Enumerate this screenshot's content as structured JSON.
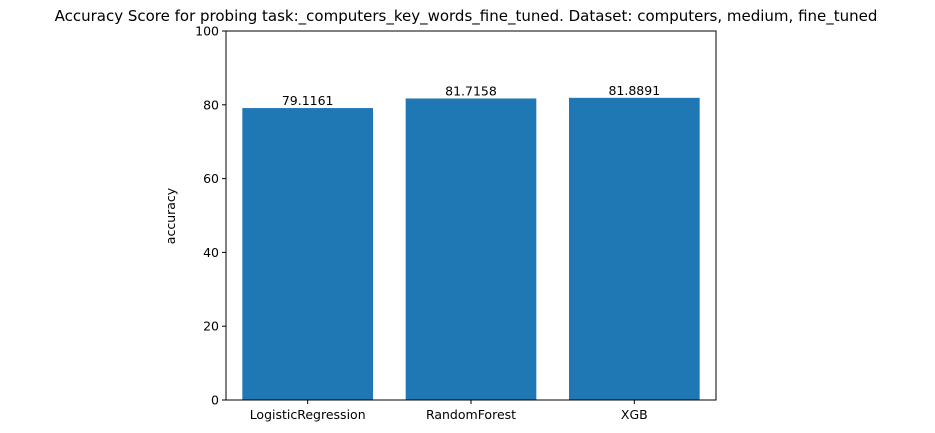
{
  "chart_data": {
    "type": "bar",
    "title": "Accuracy Score for probing task:_computers_key_words_fine_tuned. Dataset: computers, medium, fine_tuned",
    "xlabel": "",
    "ylabel": "accuracy",
    "categories": [
      "LogisticRegression",
      "RandomForest",
      "XGB"
    ],
    "values": [
      79.1161,
      81.7158,
      81.8891
    ],
    "data_labels": [
      "79.1161",
      "81.7158",
      "81.8891"
    ],
    "ylim": [
      0,
      100
    ],
    "yticks": [
      0,
      20,
      40,
      60,
      80,
      100
    ],
    "ytick_labels": [
      "0",
      "20",
      "40",
      "60",
      "80",
      "100"
    ],
    "bar_color": "#1f77b4",
    "grid": false,
    "legend": "none"
  }
}
